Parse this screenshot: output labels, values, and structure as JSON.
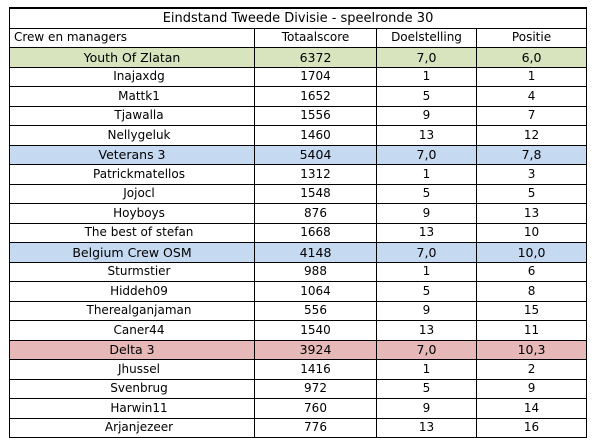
{
  "title": "Eindstand Tweede Divisie - speelronde 30",
  "headers": {
    "name": "Crew en managers",
    "score": "Totaalscore",
    "goal": "Doelstelling",
    "position": "Positie"
  },
  "colors": {
    "green": "#d7e4bd",
    "blue": "#c5d9f1",
    "red": "#e6b8b7"
  },
  "groups": [
    {
      "name": "Youth Of Zlatan",
      "score": "6372",
      "goal": "7,0",
      "position": "6,0",
      "managers": [
        {
          "name": "Inajaxdg",
          "score": "1704",
          "goal": "1",
          "position": "1"
        },
        {
          "name": "Mattk1",
          "score": "1652",
          "goal": "5",
          "position": "4"
        },
        {
          "name": "Tjawalla",
          "score": "1556",
          "goal": "9",
          "position": "7"
        },
        {
          "name": "Nellygeluk",
          "score": "1460",
          "goal": "13",
          "position": "12"
        }
      ]
    },
    {
      "name": "Veterans 3",
      "score": "5404",
      "goal": "7,0",
      "position": "7,8",
      "managers": [
        {
          "name": "Patrickmatellos",
          "score": "1312",
          "goal": "1",
          "position": "3"
        },
        {
          "name": "Jojocl",
          "score": "1548",
          "goal": "5",
          "position": "5"
        },
        {
          "name": "Hoyboys",
          "score": "876",
          "goal": "9",
          "position": "13"
        },
        {
          "name": "The best of stefan",
          "score": "1668",
          "goal": "13",
          "position": "10"
        }
      ]
    },
    {
      "name": "Belgium Crew OSM",
      "score": "4148",
      "goal": "7,0",
      "position": "10,0",
      "managers": [
        {
          "name": "Sturmstier",
          "score": "988",
          "goal": "1",
          "position": "6"
        },
        {
          "name": "Hiddeh09",
          "score": "1064",
          "goal": "5",
          "position": "8"
        },
        {
          "name": "Therealganjaman",
          "score": "556",
          "goal": "9",
          "position": "15"
        },
        {
          "name": "Caner44",
          "score": "1540",
          "goal": "13",
          "position": "11"
        }
      ]
    },
    {
      "name": "Delta 3",
      "score": "3924",
      "goal": "7,0",
      "position": "10,3",
      "managers": [
        {
          "name": "Jhussel",
          "score": "1416",
          "goal": "1",
          "position": "2"
        },
        {
          "name": "Svenbrug",
          "score": "972",
          "goal": "5",
          "position": "9"
        },
        {
          "name": "Harwin11",
          "score": "760",
          "goal": "9",
          "position": "14"
        },
        {
          "name": "Arjanjezeer",
          "score": "776",
          "goal": "13",
          "position": "16"
        }
      ]
    }
  ]
}
